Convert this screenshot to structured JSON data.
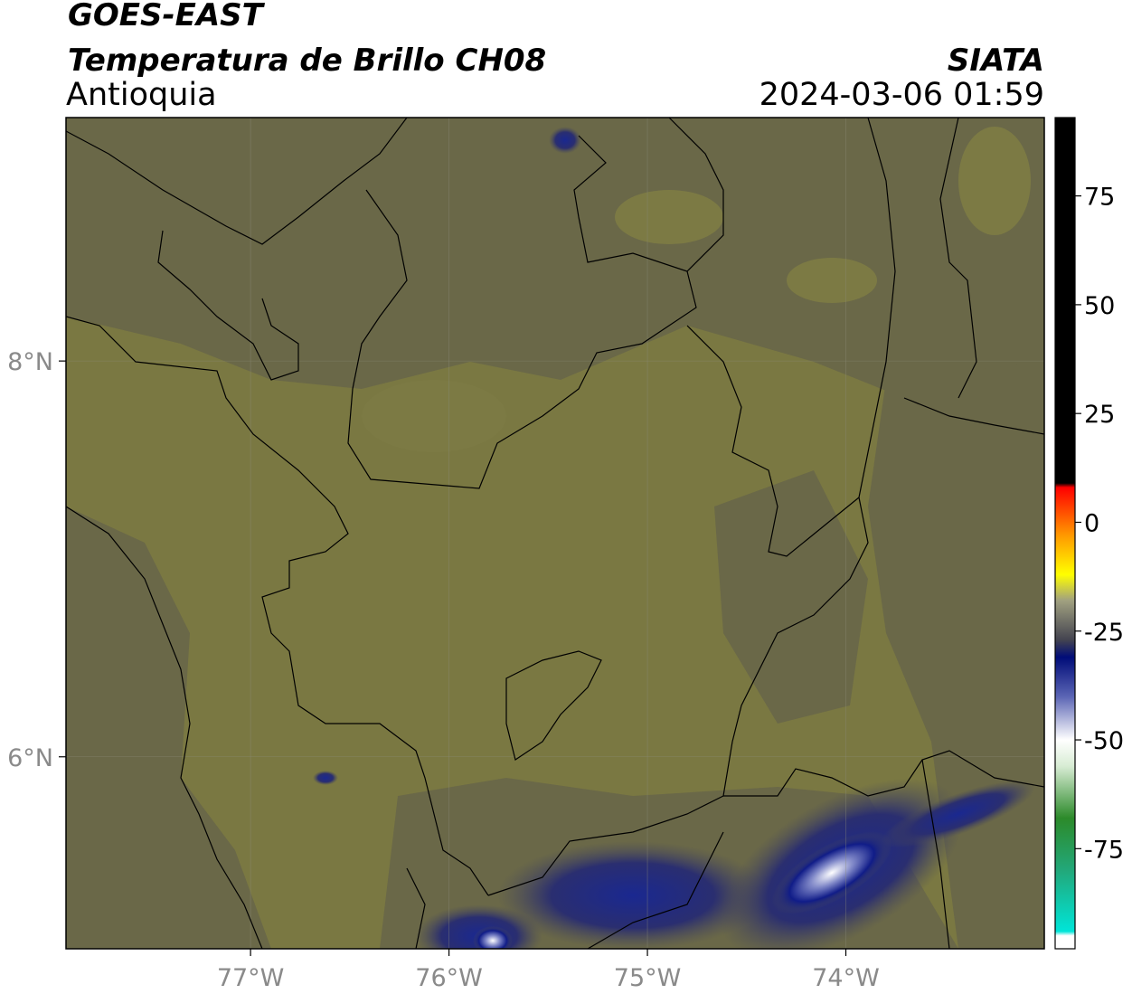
{
  "chart_data": {
    "type": "map",
    "title": "GOES-EAST",
    "subtitle": "Temperatura de Brillo CH08",
    "source": "SIATA",
    "region": "Antioquia",
    "timestamp": "2024-03-06 01:59",
    "xlim": [
      -77.93,
      -73.0
    ],
    "ylim": [
      5.03,
      9.23
    ],
    "xticks": [
      {
        "value": -77,
        "label": "77°W"
      },
      {
        "value": -76,
        "label": "76°W"
      },
      {
        "value": -75,
        "label": "75°W"
      },
      {
        "value": -74,
        "label": "74°W"
      }
    ],
    "yticks": [
      {
        "value": 6,
        "label": "6°N"
      },
      {
        "value": 8,
        "label": "8°N"
      }
    ],
    "grid": true,
    "colorbar": {
      "lim": [
        -98,
        93
      ],
      "ticks": [
        -75,
        -50,
        -25,
        0,
        25,
        50,
        75
      ],
      "colormap": [
        {
          "value": -98,
          "color": "#ffffff"
        },
        {
          "value": -95,
          "color": "#ffffff"
        },
        {
          "value": -94,
          "color": "#00e5d8"
        },
        {
          "value": -80,
          "color": "#22a87a"
        },
        {
          "value": -68,
          "color": "#2c8a2a"
        },
        {
          "value": -56,
          "color": "#d8ecd4"
        },
        {
          "value": -50,
          "color": "#ffffff"
        },
        {
          "value": -40,
          "color": "#5a64b4"
        },
        {
          "value": -31,
          "color": "#000c78"
        },
        {
          "value": -27,
          "color": "#444450"
        },
        {
          "value": -18,
          "color": "#a0a080"
        },
        {
          "value": -12,
          "color": "#ffff00"
        },
        {
          "value": -3,
          "color": "#ff9900"
        },
        {
          "value": 8,
          "color": "#ff0000"
        },
        {
          "value": 9,
          "color": "#000000"
        },
        {
          "value": 93,
          "color": "#000000"
        }
      ]
    }
  }
}
